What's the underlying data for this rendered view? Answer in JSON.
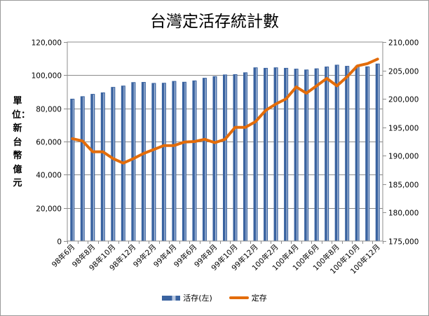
{
  "chart_data": {
    "type": "bar+line",
    "title": "台灣定活存統計數",
    "ylabel": "單位：新台幣億元",
    "categories": [
      "98年6月",
      "98年7月",
      "98年8月",
      "98年9月",
      "98年10月",
      "98年11月",
      "98年12月",
      "99年1月",
      "99年2月",
      "99年3月",
      "99年4月",
      "99年5月",
      "99年6月",
      "99年7月",
      "99年8月",
      "99年9月",
      "99年10月",
      "99年11月",
      "99年12月",
      "100年1月",
      "100年2月",
      "100年3月",
      "100年4月",
      "100年5月",
      "100年6月",
      "100年7月",
      "100年8月",
      "100年9月",
      "100年10月",
      "100年11月",
      "100年12月"
    ],
    "x_tick_labels": [
      "98年6月",
      "98年8月",
      "98年10月",
      "98年12月",
      "99年2月",
      "99年4月",
      "99年6月",
      "99年8月",
      "99年10月",
      "99年12月",
      "100年2月",
      "100年4月",
      "100年6月",
      "100年8月",
      "100年10月",
      "100年12月"
    ],
    "series": [
      {
        "name": "活存(左)",
        "type": "bar",
        "axis": "left",
        "color": "#3a63a0",
        "values": [
          85800,
          87300,
          88700,
          89600,
          92900,
          93700,
          95800,
          95900,
          95300,
          95400,
          96500,
          96000,
          96800,
          98400,
          99400,
          100400,
          100600,
          101700,
          104700,
          104400,
          104700,
          104400,
          103900,
          103400,
          104100,
          105200,
          106300,
          105600,
          105800,
          105300,
          107000
        ]
      },
      {
        "name": "定存",
        "type": "line",
        "axis": "right",
        "color": "#e36c0a",
        "values": [
          193000,
          192600,
          190700,
          190700,
          189500,
          188700,
          189500,
          190400,
          191100,
          191800,
          191800,
          192400,
          192500,
          192900,
          192300,
          192900,
          195000,
          195000,
          196000,
          198000,
          199100,
          200000,
          202100,
          201000,
          202300,
          203600,
          202300,
          203900,
          205800,
          206200,
          207000
        ]
      }
    ],
    "left_axis": {
      "min": 0,
      "max": 120000,
      "step": 20000,
      "tick_labels": [
        "0",
        "20,000",
        "40,000",
        "60,000",
        "80,000",
        "100,000",
        "120,000"
      ]
    },
    "right_axis": {
      "min": 175000,
      "max": 210000,
      "step": 5000,
      "tick_labels": [
        "175,000",
        "180,000",
        "185,000",
        "190,000",
        "195,000",
        "200,000",
        "205,000",
        "210,000"
      ]
    },
    "grid": true,
    "legend_position": "bottom"
  }
}
